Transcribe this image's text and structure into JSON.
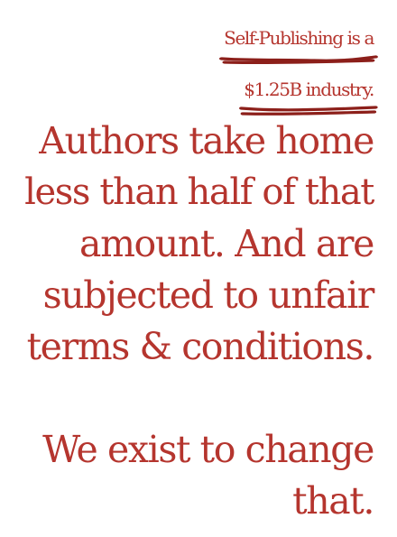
{
  "headline": {
    "line1": "Self-Publishing is a",
    "line2": "$1.25B industry."
  },
  "body": {
    "line3": "Authors take home",
    "line4": "less than half of that",
    "line5": "amount. And are",
    "line6": "subjected to unfair",
    "line7": "terms & conditions."
  },
  "mission": {
    "line1": "We exist to change",
    "line2": "that."
  },
  "colors": {
    "text": "#b5352e",
    "underline": "#8c1f1a",
    "background": "#ffffff"
  }
}
